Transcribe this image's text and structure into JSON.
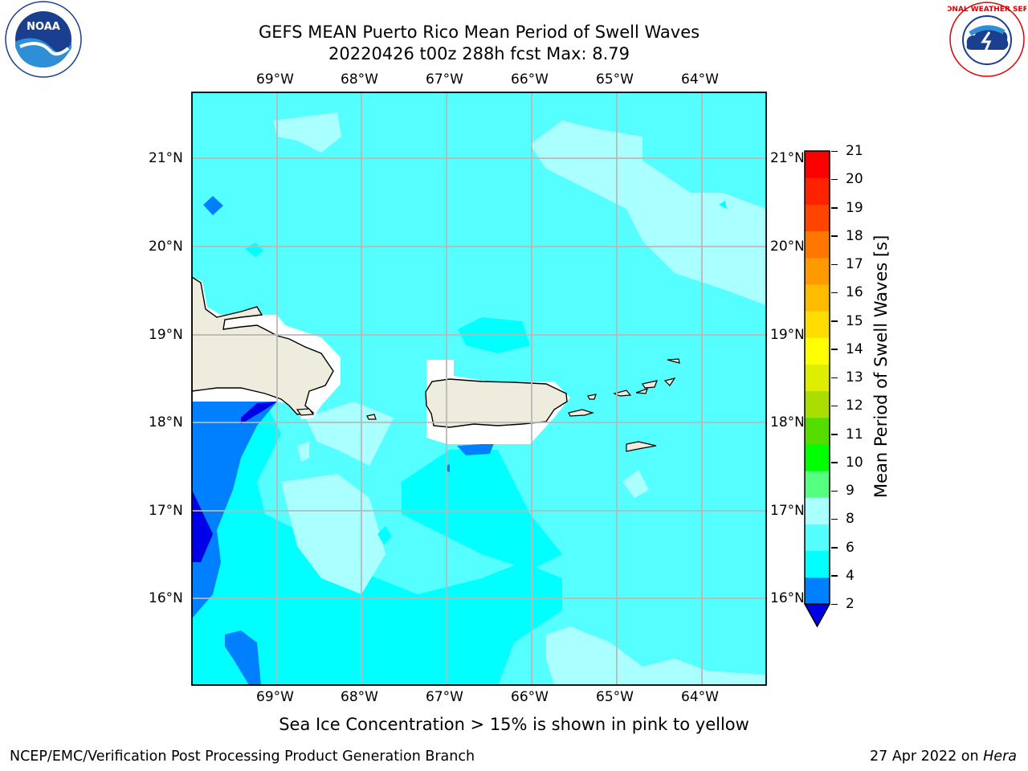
{
  "header": {
    "title_line1": "GEFS MEAN Puerto Rico Mean Period of Swell Waves",
    "title_line2": "20220426 t00z 288h fcst   Max: 8.79"
  },
  "logos": {
    "left": "noara-logo",
    "right": "national-weather-service-logo",
    "left_text": "NOAA",
    "right_text": "NATIONAL WEATHER SERVICE"
  },
  "map": {
    "lon_labels": [
      "69°W",
      "68°W",
      "67°W",
      "66°W",
      "65°W",
      "64°W"
    ],
    "lat_labels": [
      "21°N",
      "20°N",
      "19°N",
      "18°N",
      "17°N",
      "16°N"
    ],
    "land_color": "#eeecdc",
    "grid_color": "#b8b8b8"
  },
  "colorbar": {
    "label": "Mean Period of Swell Waves [s]",
    "ticks": [
      "21",
      "20",
      "19",
      "18",
      "17",
      "16",
      "15",
      "14",
      "13",
      "12",
      "11",
      "10",
      "9",
      "8",
      "6",
      "4",
      "2"
    ],
    "colors": [
      "#0000e6",
      "#0080ff",
      "#00ffff",
      "#55ffff",
      "#aaffff",
      "#55ff80",
      "#00ff00",
      "#55dd00",
      "#aadd00",
      "#ddee00",
      "#ffff00",
      "#ffdd00",
      "#ffbb00",
      "#ff9900",
      "#ff7700",
      "#ff4400",
      "#ff2200",
      "#ff0000"
    ]
  },
  "footer": {
    "note": "Sea Ice Concentration > 15% is shown in pink to yellow",
    "left": "NCEP/EMC/Verification Post Processing Product Generation Branch",
    "right_prefix": "27 Apr 2022 on ",
    "right_italic": "Hera"
  }
}
